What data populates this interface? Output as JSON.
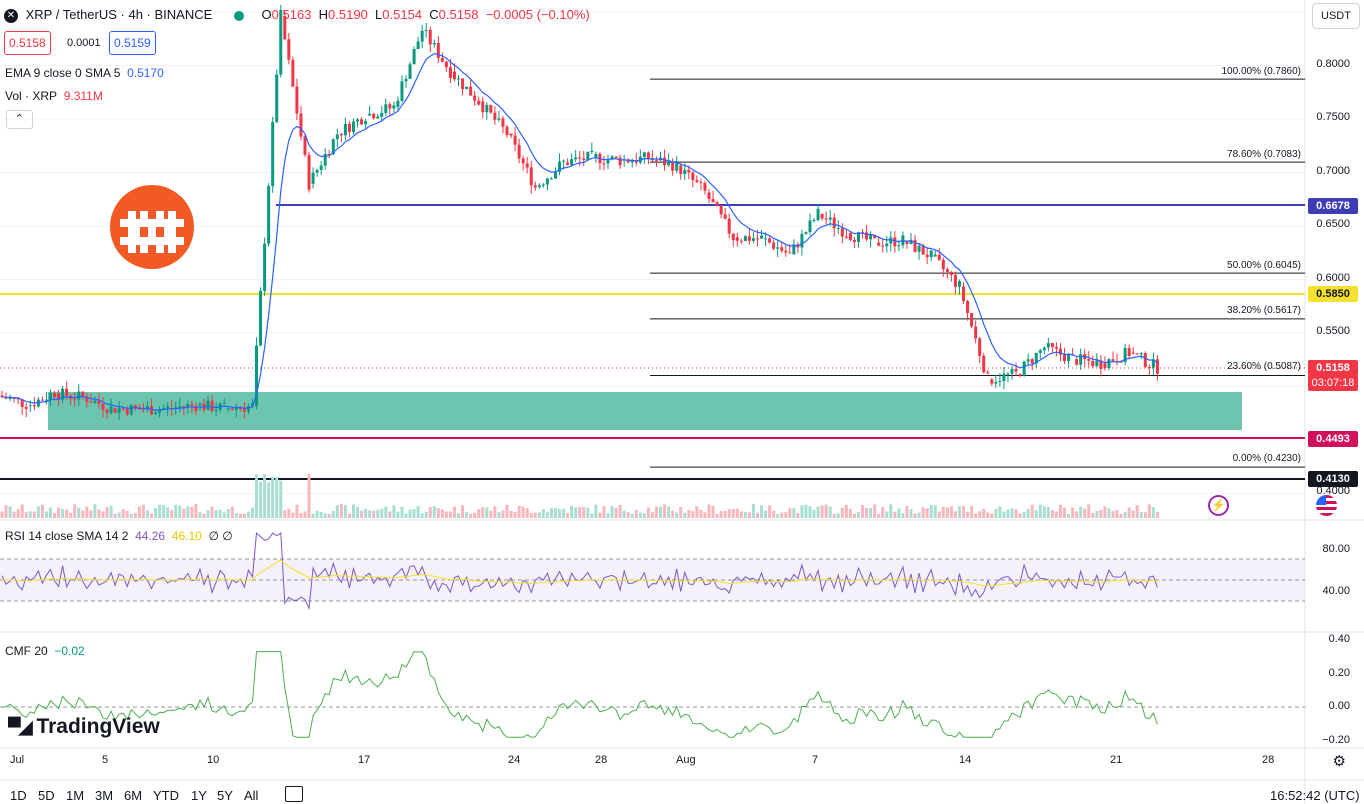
{
  "header": {
    "symbol": "XRP / TetherUS · 4h · BINANCE",
    "ohlc": [
      {
        "k": "O",
        "v": "0.5163"
      },
      {
        "k": "H",
        "v": "0.5190"
      },
      {
        "k": "L",
        "v": "0.5154"
      },
      {
        "k": "C",
        "v": "0.5158"
      }
    ],
    "change": "−0.0005 (−0.10%)",
    "sell_price": "0.5158",
    "spread": "0.0001",
    "buy_price": "0.5159",
    "currency": "USDT"
  },
  "indicators": {
    "ema_label": "EMA 9 close 0 SMA 5",
    "ema_value": "0.5170",
    "vol_label": "Vol · XRP",
    "vol_value": "9.311M",
    "rsi_label": "RSI 14 close SMA 14 2",
    "rsi_value": "44.26",
    "rsi_sma_value": "46.10",
    "rsi_extra": "∅ ∅",
    "cmf_label": "CMF 20",
    "cmf_value": "−0.02"
  },
  "price_axis": [
    "0.8000",
    "0.7500",
    "0.7000",
    "0.6500",
    "0.6000",
    "0.5500",
    "0.4000"
  ],
  "price_tags": {
    "blue_line": "0.6678",
    "yellow_line": "0.5850",
    "current_price": "0.5158",
    "countdown": "03:07:18",
    "red_line": "0.4493",
    "black_line": "0.4130"
  },
  "fib_levels": [
    {
      "label": "100.00% (0.7860)",
      "price": 0.786
    },
    {
      "label": "78.60% (0.7083)",
      "price": 0.7083
    },
    {
      "label": "50.00% (0.6045)",
      "price": 0.6045
    },
    {
      "label": "38.20% (0.5617)",
      "price": 0.5617
    },
    {
      "label": "23.60% (0.5087)",
      "price": 0.5087
    },
    {
      "label": "0.00% (0.4230)",
      "price": 0.423
    }
  ],
  "rsi_axis": [
    "80.00",
    "40.00"
  ],
  "cmf_axis": [
    "0.40",
    "0.20",
    "0.00",
    "−0.20"
  ],
  "x_axis": [
    "Jul",
    "5",
    "10",
    "17",
    "24",
    "28",
    "Aug",
    "7",
    "14",
    "21",
    "28"
  ],
  "timeframes": [
    "1D",
    "5D",
    "1M",
    "3M",
    "6M",
    "YTD",
    "1Y",
    "5Y",
    "All"
  ],
  "footer": {
    "clock": "16:52:42 (UTC)",
    "brand": "TradingView"
  },
  "colors": {
    "up": "#089981",
    "down": "#f23645",
    "ema": "#2962ff",
    "blue_line": "#3d3db8",
    "yellow_line": "#f5e02e",
    "red_line": "#d10f5a",
    "zone": "#6dc5b0",
    "rsi_line": "#7e57c2",
    "rsi_sma": "#f5e02e",
    "cmf_line": "#4caf50",
    "logo": "#f15a22"
  },
  "chart_data": {
    "type": "candlestick",
    "symbol": "XRPUSDT",
    "interval": "4h",
    "price_path": [
      [
        0.49,
        0.482
      ],
      [
        0.48,
        0.493
      ],
      [
        0.492,
        0.488
      ],
      [
        0.489,
        0.478
      ],
      [
        0.478,
        0.477
      ],
      [
        0.477,
        0.478
      ],
      [
        0.478,
        0.481
      ],
      [
        0.481,
        0.478
      ],
      [
        0.478,
        0.48
      ],
      [
        0.48,
        0.845
      ],
      [
        0.845,
        0.688
      ],
      [
        0.688,
        0.735
      ],
      [
        0.735,
        0.752
      ],
      [
        0.752,
        0.76
      ],
      [
        0.76,
        0.832
      ],
      [
        0.832,
        0.793
      ],
      [
        0.793,
        0.765
      ],
      [
        0.765,
        0.735
      ],
      [
        0.735,
        0.685
      ],
      [
        0.685,
        0.708
      ],
      [
        0.708,
        0.713
      ],
      [
        0.713,
        0.71
      ],
      [
        0.71,
        0.712
      ],
      [
        0.712,
        0.705
      ],
      [
        0.705,
        0.68
      ],
      [
        0.68,
        0.638
      ],
      [
        0.638,
        0.637
      ],
      [
        0.637,
        0.622
      ],
      [
        0.622,
        0.66
      ],
      [
        0.66,
        0.642
      ],
      [
        0.642,
        0.633
      ],
      [
        0.633,
        0.635
      ],
      [
        0.635,
        0.62
      ],
      [
        0.62,
        0.592
      ],
      [
        0.592,
        0.505
      ],
      [
        0.505,
        0.51
      ],
      [
        0.51,
        0.535
      ],
      [
        0.535,
        0.524
      ],
      [
        0.524,
        0.52
      ],
      [
        0.52,
        0.53
      ],
      [
        0.53,
        0.516
      ]
    ]
  }
}
